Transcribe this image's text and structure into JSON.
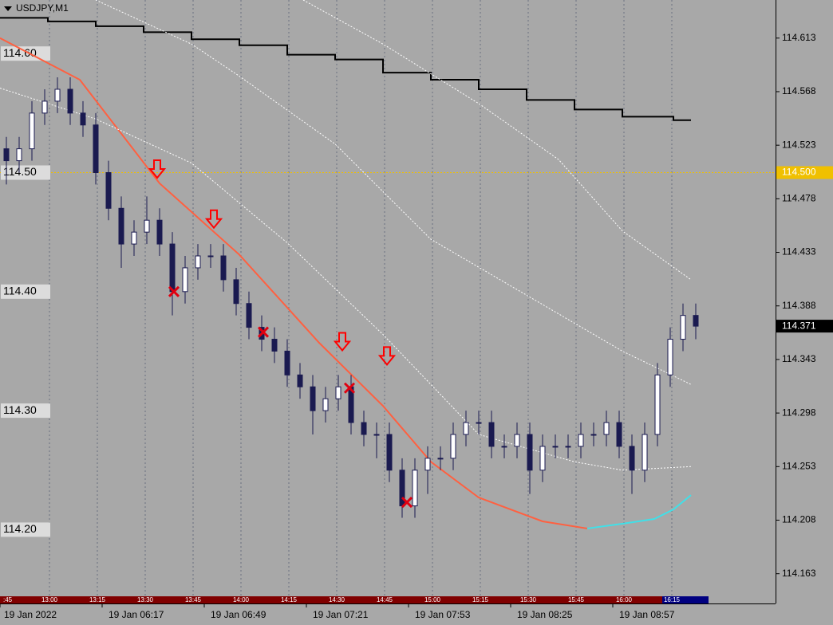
{
  "chart_data": {
    "type": "candlestick",
    "title": "USDJPY,M1",
    "xlim": [
      0,
      243
    ],
    "ylim": [
      114.138,
      114.645
    ],
    "yticks": [
      114.613,
      114.568,
      114.523,
      114.478,
      114.433,
      114.388,
      114.343,
      114.298,
      114.253,
      114.208,
      114.163
    ],
    "xticks": [
      {
        "value": 0,
        "label": "19 Jan 2022"
      },
      {
        "value": 32,
        "label": "19 Jan 06:17"
      },
      {
        "value": 64,
        "label": "19 Jan 06:49"
      },
      {
        "value": 96,
        "label": "19 Jan 07:21"
      },
      {
        "value": 128,
        "label": "19 Jan 07:53"
      },
      {
        "value": 160,
        "label": "19 Jan 08:25"
      },
      {
        "value": 192,
        "label": "19 Jan 08:57"
      }
    ],
    "session_ticks": [
      {
        "value": 0,
        "label": ":45"
      },
      {
        "value": 15,
        "label": "13:00"
      },
      {
        "value": 30,
        "label": "13:15"
      },
      {
        "value": 45,
        "label": "13:30"
      },
      {
        "value": 60,
        "label": "13:45"
      },
      {
        "value": 75,
        "label": "14:00"
      },
      {
        "value": 90,
        "label": "14:15"
      },
      {
        "value": 105,
        "label": "14:30"
      },
      {
        "value": 120,
        "label": "14:45"
      },
      {
        "value": 135,
        "label": "15:00"
      },
      {
        "value": 150,
        "label": "15:15"
      },
      {
        "value": 165,
        "label": "15:30"
      },
      {
        "value": 180,
        "label": "15:45"
      },
      {
        "value": 195,
        "label": "16:00"
      },
      {
        "value": 210,
        "label": "16:15"
      }
    ],
    "levels": [
      {
        "value": 114.6,
        "label": "114.60"
      },
      {
        "value": 114.5,
        "label": "114.50"
      },
      {
        "value": 114.4,
        "label": "114.40"
      },
      {
        "value": 114.3,
        "label": "114.30"
      },
      {
        "value": 114.2,
        "label": "114.20"
      }
    ],
    "hline": {
      "value": 114.5,
      "label": "114.500",
      "color": "#f0c000"
    },
    "current_price": 114.371,
    "x": [
      2,
      6,
      10,
      14,
      18,
      22,
      26,
      30,
      34,
      38,
      42,
      46,
      50,
      54,
      58,
      62,
      66,
      70,
      74,
      78,
      82,
      86,
      90,
      94,
      98,
      102,
      106,
      110,
      114,
      118,
      122,
      126,
      130,
      134,
      138,
      142,
      146,
      150,
      154,
      158,
      162,
      166,
      170,
      174,
      178,
      182,
      186,
      190,
      194,
      198,
      202,
      206,
      210,
      214,
      218
    ],
    "open": [
      114.52,
      114.51,
      114.52,
      114.55,
      114.56,
      114.57,
      114.55,
      114.54,
      114.5,
      114.47,
      114.44,
      114.45,
      114.46,
      114.44,
      114.4,
      114.42,
      114.43,
      114.43,
      114.41,
      114.39,
      114.37,
      114.36,
      114.35,
      114.33,
      114.32,
      114.3,
      114.31,
      114.32,
      114.29,
      114.28,
      114.28,
      114.25,
      114.22,
      114.25,
      114.26,
      114.26,
      114.28,
      114.29,
      114.29,
      114.27,
      114.27,
      114.28,
      114.25,
      114.27,
      114.27,
      114.27,
      114.28,
      114.28,
      114.29,
      114.27,
      114.25,
      114.28,
      114.33,
      114.36,
      114.38
    ],
    "high": [
      114.53,
      114.53,
      114.56,
      114.57,
      114.58,
      114.58,
      114.56,
      114.55,
      114.51,
      114.48,
      114.46,
      114.48,
      114.47,
      114.45,
      114.43,
      114.44,
      114.44,
      114.44,
      114.42,
      114.4,
      114.38,
      114.37,
      114.36,
      114.34,
      114.33,
      114.32,
      114.33,
      114.33,
      114.3,
      114.29,
      114.29,
      114.26,
      114.26,
      114.27,
      114.27,
      114.29,
      114.3,
      114.3,
      114.3,
      114.28,
      114.29,
      114.29,
      114.28,
      114.28,
      114.28,
      114.29,
      114.29,
      114.3,
      114.3,
      114.28,
      114.29,
      114.34,
      114.37,
      114.39,
      114.39
    ],
    "low": [
      114.49,
      114.5,
      114.51,
      114.54,
      114.55,
      114.54,
      114.53,
      114.49,
      114.46,
      114.42,
      114.43,
      114.44,
      114.43,
      114.38,
      114.39,
      114.41,
      114.42,
      114.4,
      114.38,
      114.36,
      114.35,
      114.34,
      114.32,
      114.31,
      114.28,
      114.29,
      114.3,
      114.28,
      114.27,
      114.26,
      114.24,
      114.21,
      114.21,
      114.23,
      114.25,
      114.25,
      114.27,
      114.28,
      114.26,
      114.26,
      114.26,
      114.23,
      114.24,
      114.26,
      114.26,
      114.26,
      114.27,
      114.27,
      114.26,
      114.23,
      114.24,
      114.27,
      114.32,
      114.35,
      114.36
    ],
    "close": [
      114.51,
      114.52,
      114.55,
      114.56,
      114.57,
      114.55,
      114.54,
      114.5,
      114.47,
      114.44,
      114.45,
      114.46,
      114.44,
      114.4,
      114.42,
      114.43,
      114.43,
      114.41,
      114.39,
      114.37,
      114.36,
      114.35,
      114.33,
      114.32,
      114.3,
      114.31,
      114.32,
      114.29,
      114.28,
      114.28,
      114.25,
      114.22,
      114.25,
      114.26,
      114.26,
      114.28,
      114.29,
      114.29,
      114.27,
      114.27,
      114.28,
      114.25,
      114.27,
      114.27,
      114.27,
      114.28,
      114.28,
      114.29,
      114.27,
      114.25,
      114.28,
      114.33,
      114.36,
      114.38,
      114.371
    ],
    "lines": [
      {
        "color": "#000000",
        "style": "solid",
        "step": true,
        "x": [
          0,
          15,
          30,
          45,
          60,
          75,
          90,
          105,
          120,
          135,
          150,
          165,
          180,
          195,
          211,
          216.5
        ],
        "values": [
          114.63,
          114.627,
          114.623,
          114.618,
          114.612,
          114.607,
          114.599,
          114.595,
          114.584,
          114.578,
          114.57,
          114.561,
          114.553,
          114.547,
          114.544,
          114.544
        ]
      },
      {
        "color": "#ff6040",
        "style": "solid",
        "step": false,
        "x": [
          0,
          25,
          50,
          75,
          100,
          120,
          135,
          150,
          170,
          184
        ],
        "values": [
          114.613,
          114.578,
          114.491,
          114.431,
          114.357,
          114.304,
          114.257,
          114.227,
          114.207,
          114.201
        ]
      },
      {
        "color": "#40e0e8",
        "style": "solid",
        "step": false,
        "x": [
          184,
          195,
          205,
          211,
          216.5
        ],
        "values": [
          114.201,
          114.205,
          114.209,
          114.217,
          114.229
        ]
      },
      {
        "color": "#ffffff",
        "style": "dotted",
        "step": false,
        "x": [
          30,
          60,
          75,
          105,
          135,
          165,
          195,
          216.5
        ],
        "values": [
          114.645,
          114.608,
          114.581,
          114.524,
          114.444,
          114.397,
          114.35,
          114.322
        ]
      },
      {
        "color": "#ffffff",
        "style": "dotted",
        "step": false,
        "x": [
          95,
          120,
          150,
          175,
          195,
          216.5
        ],
        "values": [
          114.645,
          114.608,
          114.558,
          114.511,
          114.451,
          114.41
        ]
      },
      {
        "color": "#ffffff",
        "style": "dotted",
        "step": false,
        "x": [
          0,
          30,
          60,
          90,
          120,
          150,
          180,
          195,
          216.5
        ],
        "values": [
          114.571,
          114.545,
          114.508,
          114.441,
          114.364,
          114.28,
          114.257,
          114.25,
          114.253
        ]
      }
    ],
    "markers": [
      {
        "shape": "arrow-down",
        "color": "#ff0000",
        "x": [
          49.25,
          67,
          107.25,
          121.25
        ],
        "values": [
          114.503,
          114.461,
          114.358,
          114.346
        ]
      },
      {
        "shape": "cross",
        "color": "#e00010",
        "x": [
          54.5,
          82.5,
          109.5,
          127.5
        ],
        "values": [
          114.4,
          114.366,
          114.319,
          114.223
        ]
      }
    ]
  }
}
